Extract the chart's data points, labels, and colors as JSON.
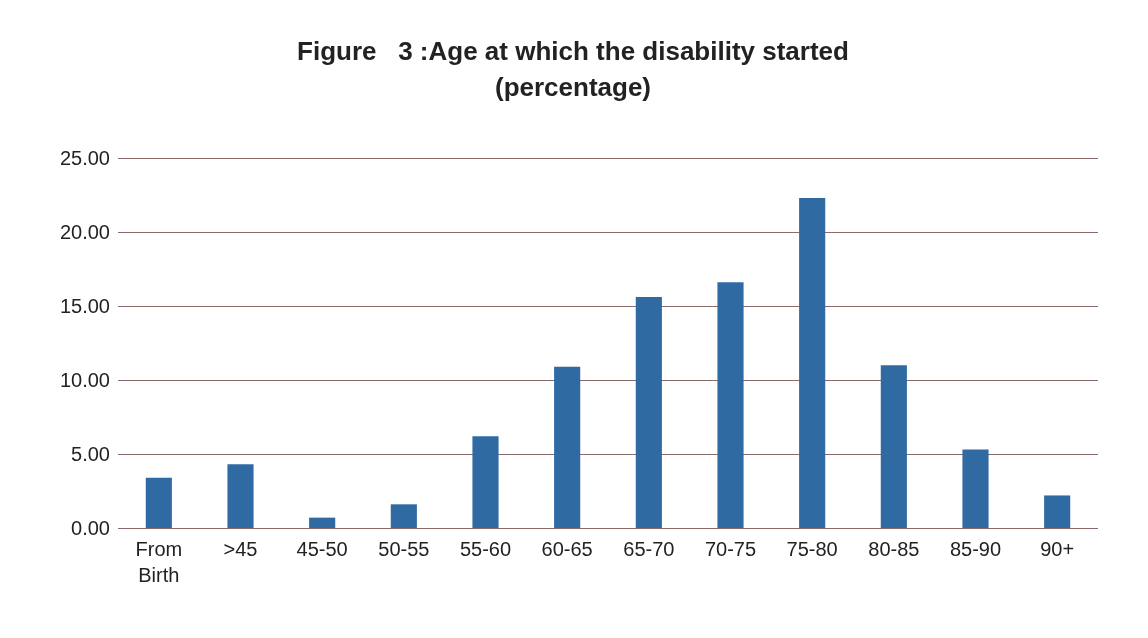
{
  "chart_data": {
    "type": "bar",
    "title": "Figure   3 :Age at which the disability started\n(percentage)",
    "categories": [
      "From\nBirth",
      ">45",
      "45-50",
      "50-55",
      "55-60",
      "60-65",
      "65-70",
      "70-75",
      "75-80",
      "80-85",
      "85-90",
      "90+"
    ],
    "values": [
      3.4,
      4.3,
      0.7,
      1.6,
      6.2,
      10.9,
      15.6,
      16.6,
      22.3,
      11.0,
      5.3,
      2.2
    ],
    "color": "#2f6aa3",
    "ylim": [
      0,
      25
    ],
    "yticks": [
      {
        "value": 0,
        "label": "0.00"
      },
      {
        "value": 5,
        "label": "5.00"
      },
      {
        "value": 10,
        "label": "10.00"
      },
      {
        "value": 15,
        "label": "15.00"
      },
      {
        "value": 20,
        "label": "20.00"
      },
      {
        "value": 25,
        "label": "25.00"
      }
    ],
    "grid": true
  }
}
